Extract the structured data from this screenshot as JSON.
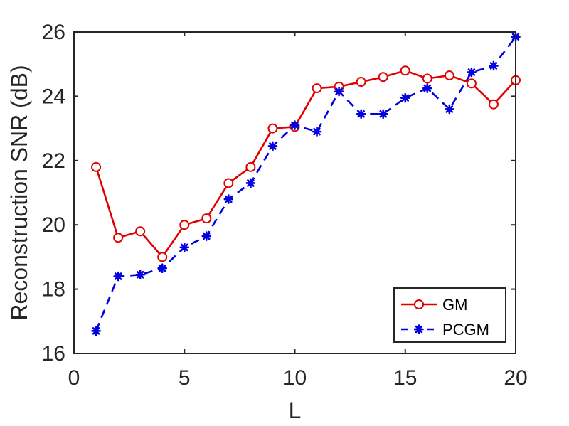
{
  "chart_data": {
    "type": "line",
    "title": "",
    "xlabel": "L",
    "ylabel": "Reconstruction SNR (dB)",
    "xlim": [
      0,
      20
    ],
    "ylim": [
      16,
      26
    ],
    "xticks": [
      0,
      5,
      10,
      15,
      20
    ],
    "yticks": [
      16,
      18,
      20,
      22,
      24,
      26
    ],
    "grid": false,
    "legend_position": "bottom-right",
    "x": [
      1,
      2,
      3,
      4,
      5,
      6,
      7,
      8,
      9,
      10,
      11,
      12,
      13,
      14,
      15,
      16,
      17,
      18,
      19,
      20
    ],
    "series": [
      {
        "name": "GM",
        "color": "#e00000",
        "line_style": "solid",
        "marker": "circle",
        "values": [
          21.8,
          19.6,
          19.8,
          19.0,
          20.0,
          20.2,
          21.3,
          21.8,
          23.0,
          23.05,
          24.25,
          24.3,
          24.45,
          24.6,
          24.8,
          24.55,
          24.65,
          24.4,
          23.75,
          24.5
        ]
      },
      {
        "name": "PCGM",
        "color": "#0000e0",
        "line_style": "dashed",
        "marker": "asterisk",
        "values": [
          16.7,
          18.4,
          18.45,
          18.65,
          19.3,
          19.65,
          20.8,
          21.3,
          22.45,
          23.1,
          22.9,
          24.15,
          23.45,
          23.45,
          23.95,
          24.25,
          23.6,
          24.75,
          24.95,
          25.85
        ]
      }
    ]
  }
}
